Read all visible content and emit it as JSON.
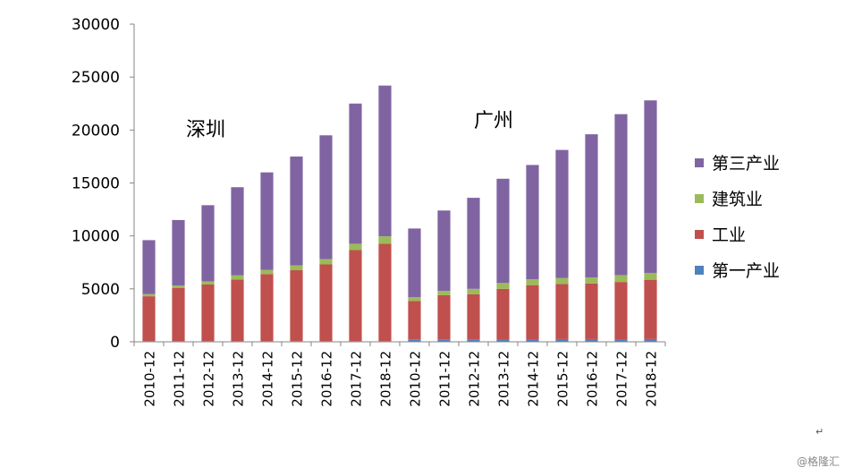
{
  "chart_data": {
    "type": "bar",
    "stacked": true,
    "categories": [
      "2010-12",
      "2011-12",
      "2012-12",
      "2013-12",
      "2014-12",
      "2015-12",
      "2016-12",
      "2017-12",
      "2018-12",
      "2010-12",
      "2011-12",
      "2012-12",
      "2013-12",
      "2014-12",
      "2015-12",
      "2016-12",
      "2017-12",
      "2018-12"
    ],
    "series": [
      {
        "name": "第一产业",
        "color": "#4F81BD",
        "values": [
          70,
          70,
          70,
          70,
          60,
          60,
          60,
          60,
          60,
          230,
          240,
          240,
          250,
          250,
          260,
          260,
          250,
          260
        ]
      },
      {
        "name": "工业",
        "color": "#C0504D",
        "values": [
          4230,
          5000,
          5340,
          5800,
          6340,
          6700,
          7250,
          8600,
          9200,
          3630,
          4160,
          4260,
          4750,
          5100,
          5200,
          5250,
          5400,
          5600
        ]
      },
      {
        "name": "建筑业",
        "color": "#9BBB59",
        "values": [
          200,
          250,
          300,
          400,
          400,
          450,
          500,
          600,
          700,
          350,
          400,
          500,
          550,
          550,
          560,
          570,
          650,
          650
        ]
      },
      {
        "name": "第三产业",
        "color": "#8064A2",
        "values": [
          5100,
          6180,
          7190,
          8330,
          9200,
          10290,
          11690,
          13240,
          14240,
          6490,
          7600,
          8600,
          9850,
          10800,
          12100,
          13520,
          15200,
          16290
        ]
      }
    ],
    "ylim": [
      0,
      30000
    ],
    "yticks": [
      0,
      5000,
      10000,
      15000,
      20000,
      25000,
      30000
    ],
    "legend_position": "right",
    "grid": false,
    "annotations": [
      "深圳",
      "广州"
    ]
  },
  "watermark": "@格隆汇",
  "return_mark": "↵"
}
